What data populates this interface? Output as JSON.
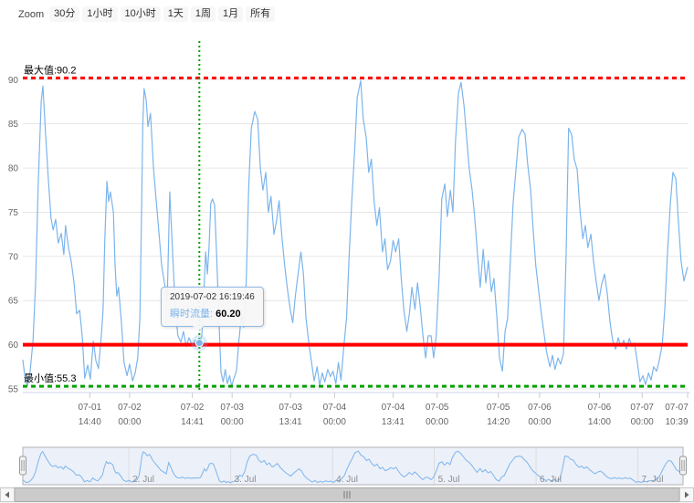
{
  "range_selector": {
    "zoom_label": "Zoom",
    "buttons": [
      "30分",
      "1小时",
      "10小时",
      "1天",
      "1周",
      "1月",
      "所有"
    ]
  },
  "tooltip": {
    "timestamp": "2019-07-02 16:19:46",
    "series_label": "瞬时流量",
    "colon": ": ",
    "value": "60.20"
  },
  "chart_data": {
    "type": "line",
    "title": "",
    "xlabel": "",
    "ylabel": "",
    "grid": true,
    "legend": false,
    "xlim_hours": [
      0,
      155.65
    ],
    "ylim": [
      54.5,
      94.3
    ],
    "y_ticks": [
      55,
      60,
      65,
      70,
      75,
      80,
      85,
      90
    ],
    "x_ticks": [
      {
        "t": 15.67,
        "date": "07-01",
        "time": "14:40"
      },
      {
        "t": 25,
        "date": "07-02",
        "time": "00:00"
      },
      {
        "t": 39.68,
        "date": "07-02",
        "time": "14:41"
      },
      {
        "t": 49,
        "date": "07-03",
        "time": "00:00"
      },
      {
        "t": 62.68,
        "date": "07-03",
        "time": "13:41"
      },
      {
        "t": 73,
        "date": "07-04",
        "time": "00:00"
      },
      {
        "t": 86.68,
        "date": "07-04",
        "time": "13:41"
      },
      {
        "t": 97,
        "date": "07-05",
        "time": "00:00"
      },
      {
        "t": 111.33,
        "date": "07-05",
        "time": "14:20"
      },
      {
        "t": 121,
        "date": "07-06",
        "time": "00:00"
      },
      {
        "t": 135,
        "date": "07-06",
        "time": "14:00"
      },
      {
        "t": 145,
        "date": "07-07",
        "time": "00:00"
      },
      {
        "t": 155.65,
        "date": "07-07",
        "time": "10:39"
      }
    ],
    "plotlines": {
      "max": {
        "value": 90.2,
        "label": "最大值:90.2",
        "color": "#ff0000",
        "style": "dash"
      },
      "threshold": {
        "value": 60,
        "label": "",
        "color": "#ff0000",
        "style": "solid"
      },
      "min": {
        "value": 55.3,
        "label": "最小值:55.3",
        "color": "#00a000",
        "style": "dash"
      }
    },
    "crosshair": {
      "t": 41.33,
      "value": 60.2,
      "color": "#00a000",
      "timestamp": "2019-07-02 16:19:46"
    },
    "navigator": {
      "day_ticks": [
        {
          "t": 25,
          "label": "2. Jul"
        },
        {
          "t": 49,
          "label": "3. Jul"
        },
        {
          "t": 73,
          "label": "4. Jul"
        },
        {
          "t": 97,
          "label": "5. Jul"
        },
        {
          "t": 121,
          "label": "6. Jul"
        },
        {
          "t": 145,
          "label": "7. Jul"
        }
      ]
    },
    "series": [
      {
        "name": "瞬时流量",
        "color": "#7cb5ec",
        "points": [
          [
            0,
            58.3
          ],
          [
            0.6,
            55.9
          ],
          [
            1.1,
            55.4
          ],
          [
            1.7,
            57
          ],
          [
            2.4,
            60.5
          ],
          [
            3,
            67
          ],
          [
            3.6,
            78
          ],
          [
            4.3,
            87.5
          ],
          [
            4.7,
            89.3
          ],
          [
            5.3,
            84
          ],
          [
            6,
            78.5
          ],
          [
            6.6,
            74.3
          ],
          [
            7.1,
            73
          ],
          [
            7.7,
            74.2
          ],
          [
            8.3,
            71.5
          ],
          [
            9,
            72.6
          ],
          [
            9.6,
            70.2
          ],
          [
            10,
            73.5
          ],
          [
            10.7,
            71
          ],
          [
            11.3,
            69.5
          ],
          [
            12,
            67
          ],
          [
            12.6,
            63.5
          ],
          [
            13.3,
            63.9
          ],
          [
            13.9,
            61
          ],
          [
            14.5,
            56.2
          ],
          [
            15.2,
            57.7
          ],
          [
            15.8,
            56.1
          ],
          [
            16.5,
            60.4
          ],
          [
            17.1,
            58.2
          ],
          [
            17.7,
            57.3
          ],
          [
            18.4,
            61.2
          ],
          [
            18.8,
            64
          ],
          [
            19.2,
            72
          ],
          [
            19.7,
            78.5
          ],
          [
            20.1,
            76.2
          ],
          [
            20.5,
            77.3
          ],
          [
            21.2,
            75
          ],
          [
            21.6,
            69
          ],
          [
            22,
            65.5
          ],
          [
            22.4,
            66.5
          ],
          [
            23.1,
            62.5
          ],
          [
            23.7,
            58
          ],
          [
            24.4,
            56.5
          ],
          [
            25,
            57.8
          ],
          [
            25.7,
            55.9
          ],
          [
            26.3,
            56.8
          ],
          [
            26.9,
            58.5
          ],
          [
            27.4,
            63
          ],
          [
            27.8,
            75
          ],
          [
            28.1,
            85
          ],
          [
            28.4,
            89
          ],
          [
            28.9,
            87.6
          ],
          [
            29.3,
            84.7
          ],
          [
            29.9,
            86.2
          ],
          [
            30.6,
            80
          ],
          [
            31.2,
            76.5
          ],
          [
            31.9,
            72.5
          ],
          [
            32.5,
            69
          ],
          [
            33.1,
            67.2
          ],
          [
            33.8,
            65
          ],
          [
            34.4,
            77.3
          ],
          [
            35.1,
            70
          ],
          [
            35.7,
            64
          ],
          [
            36.3,
            61
          ],
          [
            37,
            60.3
          ],
          [
            37.6,
            61.5
          ],
          [
            38.3,
            59.8
          ],
          [
            38.9,
            60.8
          ],
          [
            39.6,
            60
          ],
          [
            40.4,
            60.5
          ],
          [
            41.33,
            60.2
          ],
          [
            41.9,
            61
          ],
          [
            42.4,
            66
          ],
          [
            42.8,
            70.5
          ],
          [
            43.2,
            68
          ],
          [
            43.6,
            71
          ],
          [
            44,
            76
          ],
          [
            44.4,
            76.5
          ],
          [
            44.9,
            75.8
          ],
          [
            45.4,
            70
          ],
          [
            45.9,
            63
          ],
          [
            46.4,
            56.9
          ],
          [
            46.9,
            55.8
          ],
          [
            47.4,
            57.2
          ],
          [
            47.9,
            55.6
          ],
          [
            48.4,
            56.5
          ],
          [
            48.9,
            55.3
          ],
          [
            49.4,
            56.2
          ],
          [
            50,
            57
          ],
          [
            50.6,
            60.5
          ],
          [
            51.2,
            63.5
          ],
          [
            51.7,
            62
          ],
          [
            52.3,
            67
          ],
          [
            52.9,
            78
          ],
          [
            53.5,
            84.5
          ],
          [
            54.3,
            86.4
          ],
          [
            55,
            85.5
          ],
          [
            55.6,
            80
          ],
          [
            56.2,
            77.5
          ],
          [
            56.9,
            79.5
          ],
          [
            57.5,
            75
          ],
          [
            58.1,
            76.8
          ],
          [
            58.8,
            72.5
          ],
          [
            59.4,
            74
          ],
          [
            60,
            76.3
          ],
          [
            60.7,
            72
          ],
          [
            61.3,
            69
          ],
          [
            61.9,
            66.5
          ],
          [
            62.6,
            64
          ],
          [
            63.2,
            62.5
          ],
          [
            63.8,
            65.5
          ],
          [
            64.4,
            67.8
          ],
          [
            65.1,
            70.5
          ],
          [
            65.7,
            68
          ],
          [
            66.3,
            63
          ],
          [
            67,
            60
          ],
          [
            67.6,
            58
          ],
          [
            68.2,
            55.9
          ],
          [
            68.9,
            57.5
          ],
          [
            69.5,
            55.4
          ],
          [
            70.1,
            56.8
          ],
          [
            70.7,
            55.8
          ],
          [
            71.4,
            57.2
          ],
          [
            72,
            56.4
          ],
          [
            72.6,
            57
          ],
          [
            73.3,
            55.6
          ],
          [
            73.9,
            58
          ],
          [
            74.5,
            56
          ],
          [
            75.2,
            60
          ],
          [
            75.8,
            63
          ],
          [
            76.4,
            70
          ],
          [
            77,
            76
          ],
          [
            77.7,
            82
          ],
          [
            78.3,
            88
          ],
          [
            79.1,
            89.9
          ],
          [
            79.7,
            85.5
          ],
          [
            80.4,
            83.5
          ],
          [
            81,
            79.5
          ],
          [
            81.6,
            81
          ],
          [
            82.3,
            76
          ],
          [
            82.9,
            73.5
          ],
          [
            83.5,
            75.5
          ],
          [
            84.2,
            70.5
          ],
          [
            84.8,
            72
          ],
          [
            85.4,
            68.5
          ],
          [
            86.1,
            69.5
          ],
          [
            86.7,
            71.8
          ],
          [
            87.3,
            70.5
          ],
          [
            88,
            72
          ],
          [
            88.6,
            67.5
          ],
          [
            89.2,
            64
          ],
          [
            89.9,
            61.5
          ],
          [
            90.5,
            63.5
          ],
          [
            91.1,
            66.5
          ],
          [
            91.8,
            64
          ],
          [
            92.4,
            67
          ],
          [
            93,
            64.5
          ],
          [
            93.7,
            61
          ],
          [
            94.3,
            58.5
          ],
          [
            94.9,
            61
          ],
          [
            95.6,
            61
          ],
          [
            96.2,
            58.5
          ],
          [
            96.8,
            61
          ],
          [
            97.5,
            68
          ],
          [
            98.1,
            76.5
          ],
          [
            98.8,
            78.2
          ],
          [
            99.4,
            74.5
          ],
          [
            100.1,
            77.5
          ],
          [
            100.7,
            75
          ],
          [
            101.3,
            83
          ],
          [
            102,
            88.5
          ],
          [
            102.6,
            89.7
          ],
          [
            103.3,
            87
          ],
          [
            103.9,
            83.5
          ],
          [
            104.5,
            80
          ],
          [
            105.2,
            77.5
          ],
          [
            105.8,
            74.5
          ],
          [
            106.5,
            70
          ],
          [
            107.1,
            66.5
          ],
          [
            107.8,
            70.8
          ],
          [
            108.4,
            67
          ],
          [
            109,
            69.5
          ],
          [
            109.7,
            66
          ],
          [
            110.3,
            67.5
          ],
          [
            111,
            63
          ],
          [
            111.6,
            58.5
          ],
          [
            112.3,
            57
          ],
          [
            112.9,
            61.5
          ],
          [
            113.5,
            63
          ],
          [
            114.2,
            70
          ],
          [
            114.8,
            76
          ],
          [
            115.5,
            80
          ],
          [
            116.1,
            83.5
          ],
          [
            116.9,
            84.4
          ],
          [
            117.6,
            83.8
          ],
          [
            118.2,
            80.5
          ],
          [
            118.9,
            77.5
          ],
          [
            119.5,
            73
          ],
          [
            120.1,
            69
          ],
          [
            120.8,
            66
          ],
          [
            121.4,
            63.5
          ],
          [
            122.1,
            61
          ],
          [
            122.7,
            59
          ],
          [
            123.4,
            57.5
          ],
          [
            124,
            58.8
          ],
          [
            124.6,
            57.2
          ],
          [
            125.3,
            58.5
          ],
          [
            125.9,
            57.8
          ],
          [
            126.6,
            59
          ],
          [
            127.2,
            70
          ],
          [
            127.8,
            84.5
          ],
          [
            128.5,
            83.8
          ],
          [
            129.1,
            81
          ],
          [
            129.8,
            79.8
          ],
          [
            130.4,
            75.5
          ],
          [
            131.1,
            72
          ],
          [
            131.7,
            73.5
          ],
          [
            132.3,
            71
          ],
          [
            133,
            72.5
          ],
          [
            133.6,
            69.5
          ],
          [
            134.3,
            67
          ],
          [
            134.9,
            65
          ],
          [
            135.5,
            66.8
          ],
          [
            136.2,
            68
          ],
          [
            136.8,
            66
          ],
          [
            137.5,
            62.5
          ],
          [
            138.1,
            60.5
          ],
          [
            138.8,
            59.5
          ],
          [
            139.4,
            60.8
          ],
          [
            140,
            59.8
          ],
          [
            140.7,
            60.5
          ],
          [
            141.3,
            59.5
          ],
          [
            142,
            60.7
          ],
          [
            142.6,
            59.8
          ],
          [
            143.2,
            60.2
          ],
          [
            143.9,
            58
          ],
          [
            144.5,
            55.8
          ],
          [
            145.2,
            56.5
          ],
          [
            145.8,
            55.5
          ],
          [
            146.5,
            56.8
          ],
          [
            147.1,
            56
          ],
          [
            147.7,
            57.5
          ],
          [
            148.4,
            57
          ],
          [
            149,
            58.2
          ],
          [
            149.7,
            60
          ],
          [
            150.3,
            64
          ],
          [
            150.9,
            70
          ],
          [
            151.6,
            76
          ],
          [
            152.2,
            79.5
          ],
          [
            152.9,
            78.8
          ],
          [
            153.5,
            74
          ],
          [
            154.1,
            69.5
          ],
          [
            154.8,
            67.2
          ],
          [
            155.2,
            68
          ],
          [
            155.65,
            68.8
          ]
        ]
      }
    ]
  }
}
